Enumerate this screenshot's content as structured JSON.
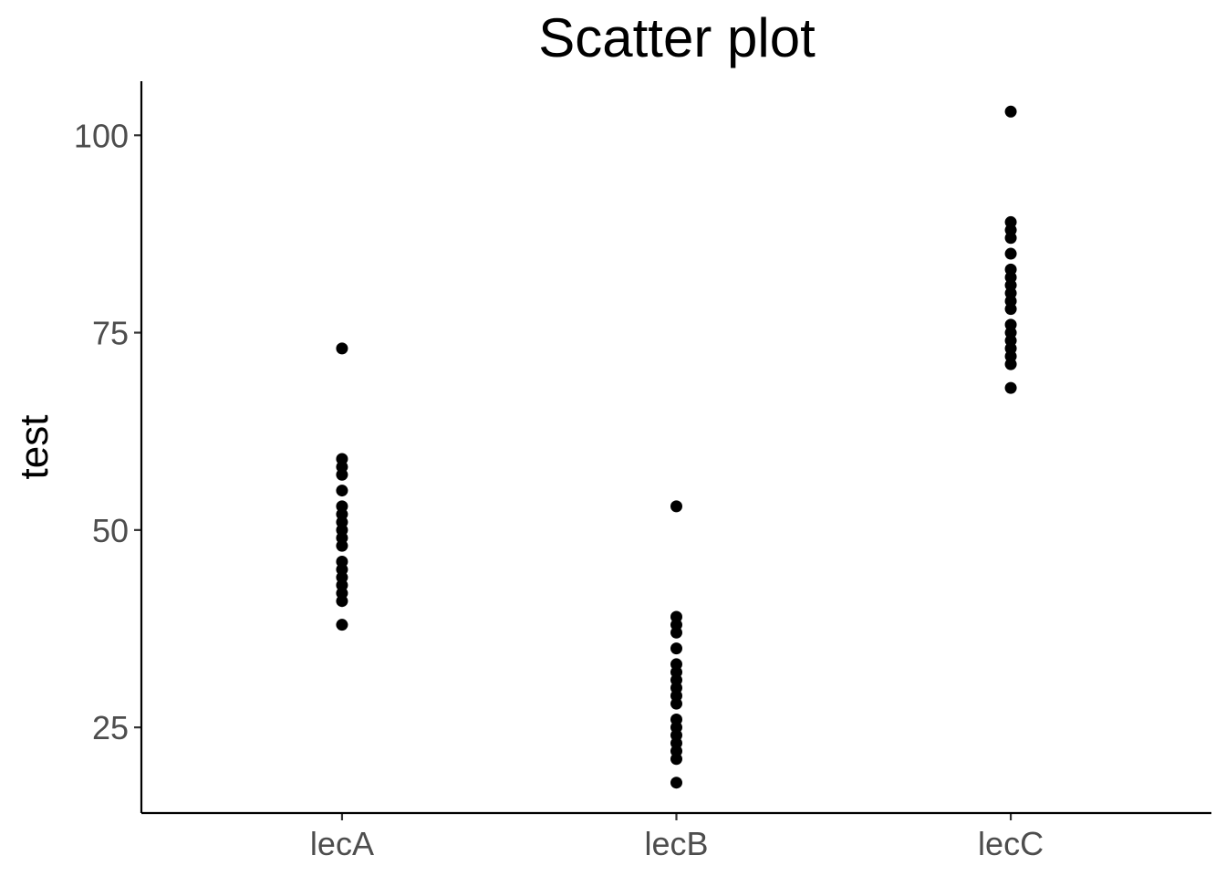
{
  "chart_data": {
    "type": "scatter",
    "title": "Scatter plot",
    "xlabel": "",
    "ylabel": "test",
    "categories": [
      "lecA",
      "lecB",
      "lecC"
    ],
    "yticks": [
      25,
      50,
      75,
      100
    ],
    "ylim": [
      14.15,
      106.85
    ],
    "grid": false,
    "legend": "none",
    "point_color": "#000000",
    "series": [
      {
        "category": "lecA",
        "values": [
          73,
          59,
          58,
          57,
          55,
          53,
          52,
          51,
          50,
          49,
          48,
          46,
          45,
          44,
          43,
          42,
          41,
          38
        ]
      },
      {
        "category": "lecB",
        "values": [
          53,
          39,
          38,
          37,
          35,
          33,
          32,
          31,
          30,
          29,
          28,
          26,
          25,
          24,
          23,
          22,
          21,
          18
        ]
      },
      {
        "category": "lecC",
        "values": [
          103,
          89,
          88,
          87,
          85,
          83,
          82,
          81,
          80,
          79,
          78,
          76,
          75,
          74,
          73,
          72,
          71,
          68
        ]
      }
    ]
  }
}
